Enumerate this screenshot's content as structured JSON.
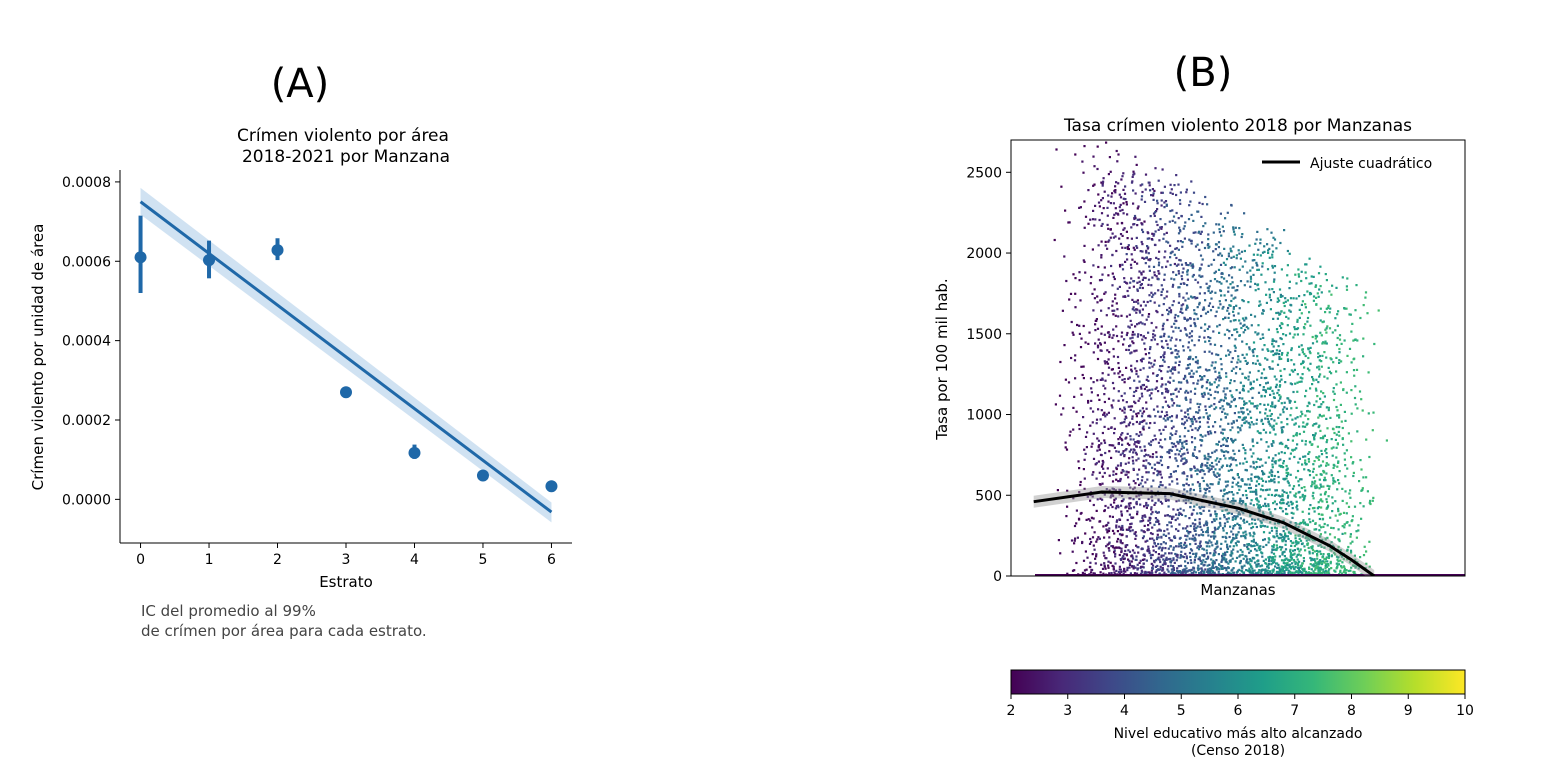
{
  "colors": {
    "series_a": "#1f68a8",
    "ci_band_a": "#a9cbe8",
    "fit_b": "#000000",
    "colormap": [
      "#440154",
      "#482878",
      "#3e4989",
      "#31688e",
      "#26828e",
      "#1f9e89",
      "#35b779",
      "#6ece58",
      "#b5de2b",
      "#fde725"
    ]
  },
  "chart_data": [
    {
      "panel_label": "(A)",
      "type": "scatter",
      "title": "Crímen violento por área\n2018-2021 por Manzana",
      "title_lines": [
        "Crímen violento por área",
        "2018-2021 por Manzana"
      ],
      "xlabel": "Estrato",
      "ylabel": "Crímen violento por unidad de área",
      "xlim": [
        -0.3,
        6.3
      ],
      "ylim": [
        -0.00011,
        0.00083
      ],
      "x_ticks": [
        0,
        1,
        2,
        3,
        4,
        5,
        6
      ],
      "x_tick_labels": [
        "0",
        "1",
        "2",
        "3",
        "4",
        "5",
        "6"
      ],
      "y_ticks": [
        0.0,
        0.0002,
        0.0004,
        0.0006,
        0.0008
      ],
      "y_tick_labels": [
        "0.0000",
        "0.0002",
        "0.0004",
        "0.0006",
        "0.0008"
      ],
      "points": [
        {
          "x": 0,
          "y": 0.00061,
          "ci": [
            0.00052,
            0.000715
          ]
        },
        {
          "x": 1,
          "y": 0.000603,
          "ci": [
            0.000557,
            0.000652
          ]
        },
        {
          "x": 2,
          "y": 0.000628,
          "ci": [
            0.000603,
            0.000658
          ]
        },
        {
          "x": 3,
          "y": 0.00027,
          "ci": [
            0.00026,
            0.00028
          ]
        },
        {
          "x": 4,
          "y": 0.000117,
          "ci": [
            0.000102,
            0.000138
          ]
        },
        {
          "x": 5,
          "y": 6e-05,
          "ci": [
            4.8e-05,
            7.4e-05
          ]
        },
        {
          "x": 6,
          "y": 3.3e-05,
          "ci": [
            2.8e-05,
            3.8e-05
          ]
        }
      ],
      "regression": {
        "x": [
          0,
          6
        ],
        "y": [
          0.00075,
          -3.2e-05
        ],
        "ci_upper": [
          0.000785,
          -8e-06
        ],
        "ci_lower": [
          0.000718,
          -5.8e-05
        ]
      },
      "note_lines": [
        "IC del promedio al 99%",
        "de crímen por área para cada estrato."
      ]
    },
    {
      "panel_label": "(B)",
      "type": "scatter",
      "title": "Tasa crímen violento 2018 por Manzanas",
      "xlabel": "Manzanas",
      "ylabel": "Tasa por 100 mil hab.",
      "ylim": [
        0,
        2700
      ],
      "y_ticks": [
        0,
        500,
        1000,
        1500,
        2000,
        2500
      ],
      "y_tick_labels": [
        "0",
        "500",
        "1000",
        "1500",
        "2000",
        "2500"
      ],
      "legend": {
        "entries": [
          "Ajuste cuadrático"
        ],
        "placement": "top-right"
      },
      "quadratic_fit": {
        "x": [
          0.05,
          0.2,
          0.35,
          0.5,
          0.6,
          0.7,
          0.75,
          0.8
        ],
        "y": [
          460,
          520,
          510,
          420,
          330,
          190,
          100,
          0
        ]
      },
      "colorbar": {
        "range": [
          2,
          10
        ],
        "ticks": [
          2,
          3,
          4,
          5,
          6,
          7,
          8,
          9,
          10
        ],
        "tick_labels": [
          "2",
          "3",
          "4",
          "5",
          "6",
          "7",
          "8",
          "9",
          "10"
        ],
        "label_lines": [
          "Nivel educativo más alto alcanzado",
          "(Censo 2018)"
        ]
      }
    }
  ]
}
